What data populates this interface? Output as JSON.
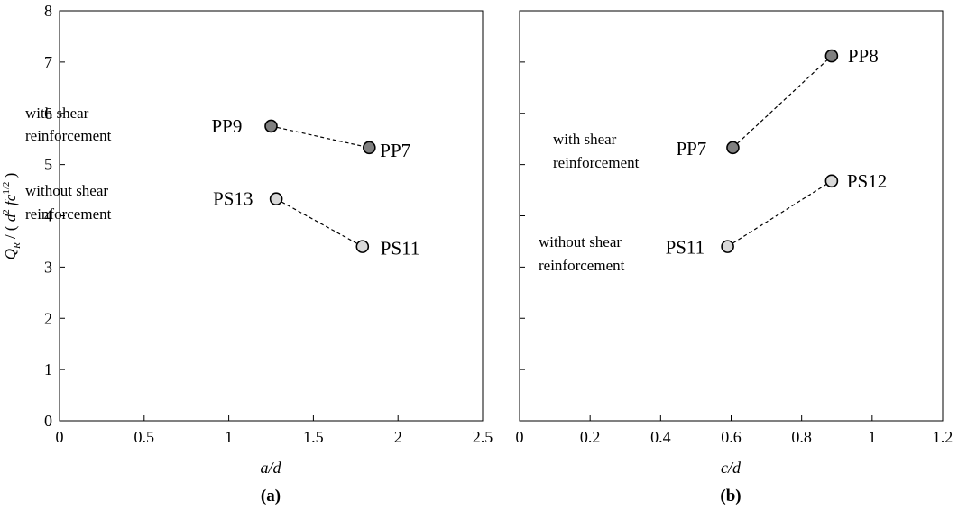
{
  "chart_data": [
    {
      "type": "scatter",
      "panel_label": "(a)",
      "xlabel": "a/d",
      "ylabel": "Q_R / ( d² fc^1/2 )",
      "xlim": [
        0,
        2.5
      ],
      "ylim": [
        0,
        8
      ],
      "xticks": [
        "0",
        "0.5",
        "1",
        "1.5",
        "2",
        "2.5"
      ],
      "yticks": [
        "0",
        "1",
        "2",
        "3",
        "4",
        "5",
        "6",
        "7",
        "8"
      ],
      "grid": false,
      "series": [
        {
          "name": "with shear reinforcement",
          "color": "#808080",
          "points": [
            {
              "label": "PP9",
              "x": 1.25,
              "y": 5.75
            },
            {
              "label": "PP7",
              "x": 1.83,
              "y": 5.33
            }
          ]
        },
        {
          "name": "without shear reinforcement",
          "color": "#d9d9d9",
          "points": [
            {
              "label": "PS13",
              "x": 1.28,
              "y": 4.33
            },
            {
              "label": "PS11",
              "x": 1.79,
              "y": 3.4
            }
          ]
        }
      ]
    },
    {
      "type": "scatter",
      "panel_label": "(b)",
      "xlabel": "c/d",
      "xlim": [
        0,
        1.2
      ],
      "ylim": [
        0,
        8
      ],
      "xticks": [
        "0",
        "0.2",
        "0.4",
        "0.6",
        "0.8",
        "1",
        "1.2"
      ],
      "grid": false,
      "series": [
        {
          "name": "with shear reinforcement",
          "color": "#808080",
          "points": [
            {
              "label": "PP7",
              "x": 0.605,
              "y": 5.33
            },
            {
              "label": "PP8",
              "x": 0.885,
              "y": 7.12
            }
          ]
        },
        {
          "name": "without shear reinforcement",
          "color": "#d9d9d9",
          "points": [
            {
              "label": "PS11",
              "x": 0.59,
              "y": 3.4
            },
            {
              "label": "PS12",
              "x": 0.885,
              "y": 4.68
            }
          ]
        }
      ]
    }
  ],
  "notes": {
    "a_with_1": "with shear",
    "a_with_2": "reinforcement",
    "a_without_1": "without shear",
    "a_without_2": "reinforcement",
    "b_with_1": "with shear",
    "b_with_2": "reinforcement",
    "b_without_1": "without shear",
    "b_without_2": "reinforcement"
  }
}
